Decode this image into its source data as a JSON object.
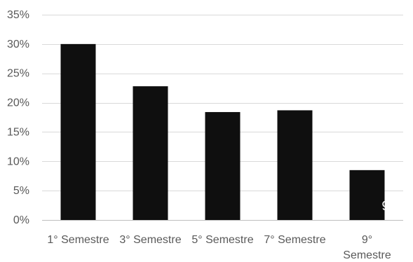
{
  "chart_data": {
    "type": "bar",
    "categories": [
      "1° Semestre",
      "3° Semestre",
      "5° Semestre",
      "7° Semestre",
      "9° Semestre"
    ],
    "category_label_lines": [
      [
        "1° Semestre"
      ],
      [
        "3° Semestre"
      ],
      [
        "5° Semestre"
      ],
      [
        "7° Semestre"
      ],
      [
        "9°",
        "Semestre"
      ]
    ],
    "values": [
      0.3,
      0.228,
      0.184,
      0.187,
      0.085
    ],
    "ylim": [
      0,
      0.35
    ],
    "yticks": [
      0,
      0.05,
      0.1,
      0.15,
      0.2,
      0.25,
      0.3,
      0.35
    ],
    "ytick_labels": [
      "0%",
      "5%",
      "10%",
      "15%",
      "20%",
      "25%",
      "30%",
      "35%"
    ],
    "grid": true,
    "legend": "none",
    "bar_color": "#0f0f0f",
    "grid_color": "#d9d9d9",
    "label_color": "#595959",
    "stray_glyph": "9"
  }
}
